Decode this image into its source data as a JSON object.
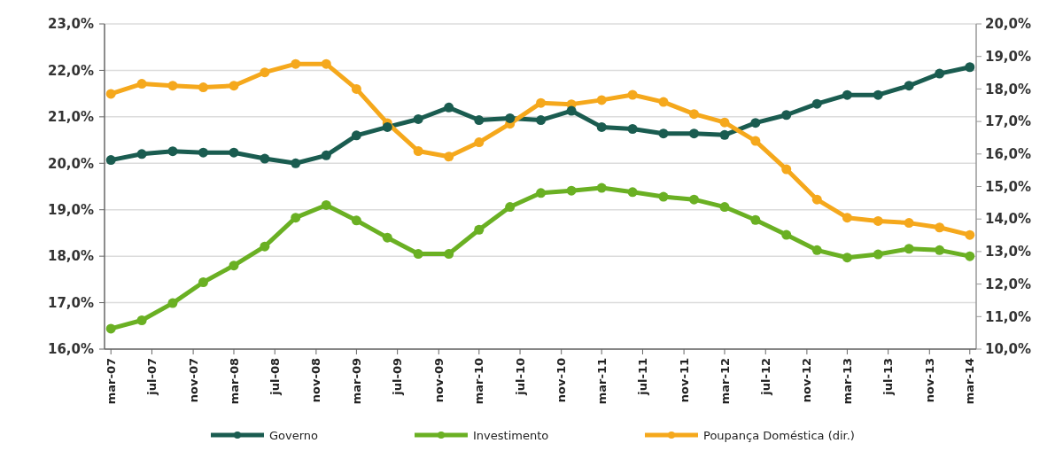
{
  "chart_data": {
    "type": "line",
    "x": [
      "2007-03",
      "2007-06",
      "2007-09",
      "2007-12",
      "2008-03",
      "2008-06",
      "2008-09",
      "2008-12",
      "2009-03",
      "2009-06",
      "2009-09",
      "2009-12",
      "2010-03",
      "2010-06",
      "2010-09",
      "2010-12",
      "2011-03",
      "2011-06",
      "2011-09",
      "2011-12",
      "2012-03",
      "2012-06",
      "2012-09",
      "2012-12",
      "2013-03",
      "2013-06",
      "2013-09",
      "2013-12",
      "2014-03"
    ],
    "series": [
      {
        "name": "Governo",
        "color": "#1a5c50",
        "values": [
          20.07,
          20.2,
          20.26,
          20.23,
          20.23,
          20.1,
          20.0,
          20.17,
          20.6,
          20.78,
          20.95,
          21.2,
          20.93,
          20.97,
          20.93,
          21.13,
          20.78,
          20.74,
          20.64,
          20.64,
          20.61,
          20.87,
          21.04,
          21.28,
          21.47,
          21.47,
          21.67,
          21.93,
          22.07
        ]
      },
      {
        "name": "Investimento",
        "color": "#6ab023",
        "values": [
          16.44,
          16.62,
          16.99,
          17.44,
          17.8,
          18.21,
          18.83,
          19.1,
          18.77,
          18.4,
          18.05,
          18.05,
          18.57,
          19.06,
          19.36,
          19.41,
          19.47,
          19.38,
          19.28,
          19.22,
          19.06,
          18.78,
          18.46,
          18.13,
          17.97,
          18.04,
          18.16,
          18.13,
          18.0
        ]
      },
      {
        "name": "Poupança Doméstica (dir.)",
        "color": "#f5a81c",
        "axis": "y2",
        "values": [
          17.85,
          18.16,
          18.1,
          18.05,
          18.1,
          18.51,
          18.77,
          18.77,
          18.0,
          16.95,
          16.09,
          15.92,
          16.36,
          16.93,
          17.57,
          17.53,
          17.66,
          17.82,
          17.6,
          17.23,
          16.97,
          16.4,
          15.53,
          14.6,
          14.04,
          13.94,
          13.88,
          13.74,
          13.51
        ]
      }
    ],
    "xlim": [
      "2007-02-10",
      "2014-03-20"
    ],
    "xticks": [
      {
        "value": "2007-03",
        "label": "mar-07"
      },
      {
        "value": "2007-07",
        "label": "jul-07"
      },
      {
        "value": "2007-11",
        "label": "nov-07"
      },
      {
        "value": "2008-03",
        "label": "mar-08"
      },
      {
        "value": "2008-07",
        "label": "jul-08"
      },
      {
        "value": "2008-11",
        "label": "nov-08"
      },
      {
        "value": "2009-03",
        "label": "mar-09"
      },
      {
        "value": "2009-07",
        "label": "jul-09"
      },
      {
        "value": "2009-11",
        "label": "nov-09"
      },
      {
        "value": "2010-03",
        "label": "mar-10"
      },
      {
        "value": "2010-07",
        "label": "jul-10"
      },
      {
        "value": "2010-11",
        "label": "nov-10"
      },
      {
        "value": "2011-03",
        "label": "mar-11"
      },
      {
        "value": "2011-07",
        "label": "jul-11"
      },
      {
        "value": "2011-11",
        "label": "nov-11"
      },
      {
        "value": "2012-03",
        "label": "mar-12"
      },
      {
        "value": "2012-07",
        "label": "jul-12"
      },
      {
        "value": "2012-11",
        "label": "nov-12"
      },
      {
        "value": "2013-03",
        "label": "mar-13"
      },
      {
        "value": "2013-07",
        "label": "jul-13"
      },
      {
        "value": "2013-11",
        "label": "nov-13"
      },
      {
        "value": "2014-03",
        "label": "mar-14"
      }
    ],
    "ylim": [
      16,
      23
    ],
    "yticks": [
      {
        "value": 16,
        "label": "16,0%"
      },
      {
        "value": 17,
        "label": "17,0%"
      },
      {
        "value": 18,
        "label": "18,0%"
      },
      {
        "value": 19,
        "label": "19,0%"
      },
      {
        "value": 20,
        "label": "20,0%"
      },
      {
        "value": 21,
        "label": "21,0%"
      },
      {
        "value": 22,
        "label": "22,0%"
      },
      {
        "value": 23,
        "label": "23,0%"
      }
    ],
    "y2lim": [
      10,
      20
    ],
    "y2ticks": [
      {
        "value": 10,
        "label": "10,0%"
      },
      {
        "value": 11,
        "label": "11,0%"
      },
      {
        "value": 12,
        "label": "12,0%"
      },
      {
        "value": 13,
        "label": "13,0%"
      },
      {
        "value": 14,
        "label": "14,0%"
      },
      {
        "value": 15,
        "label": "15,0%"
      },
      {
        "value": 16,
        "label": "16,0%"
      },
      {
        "value": 17,
        "label": "17,0%"
      },
      {
        "value": 18,
        "label": "18,0%"
      },
      {
        "value": 19,
        "label": "19,0%"
      },
      {
        "value": 20,
        "label": "20,0%"
      }
    ],
    "grid": "y",
    "legend": "bottom",
    "marker": "circle",
    "line_style": "solid"
  }
}
